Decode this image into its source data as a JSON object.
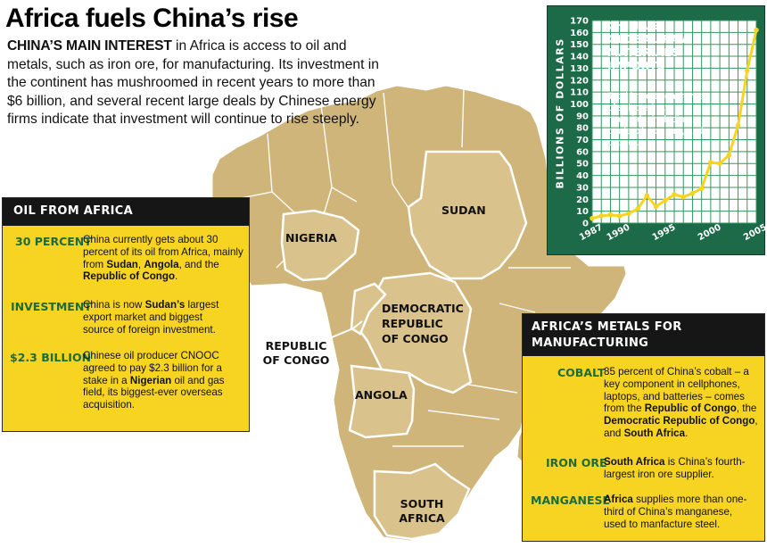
{
  "title": "Africa fuels China’s rise",
  "intro": {
    "lead": "CHINA’S MAIN INTEREST",
    "text": " in Africa is access to oil and metals, such as iron ore, for manufacturing. Its investment in the continent has mushroomed in recent years to more than $6 billion, and several recent large deals by Chinese energy firms indicate that investment will continue to rise steeply."
  },
  "map": {
    "labels": {
      "nigeria": "NIGERIA",
      "sudan": "SUDAN",
      "drc": "DEMOCRATIC REPUBLIC OF CONGO",
      "republic_of_congo": "REPUBLIC OF CONGO",
      "angola": "ANGOLA",
      "south_africa": "SOUTH AFRICA"
    },
    "colors": {
      "land": "#cfb57a",
      "highlight": "#d9c28b",
      "border": "#ffffff",
      "sea": "#ffffff"
    }
  },
  "oil_panel": {
    "header": "OIL FROM AFRICA",
    "rows": [
      {
        "key": "30 PERCENT",
        "parts": [
          "China currently gets about 30 percent of its oil from Africa, mainly from ",
          "Sudan",
          ", ",
          "Angola",
          ", and the ",
          "Republic of Congo",
          "."
        ]
      },
      {
        "key": "INVESTMENT",
        "parts": [
          "China is now ",
          "Sudan’s",
          " largest export market and biggest source of foreign investment."
        ]
      },
      {
        "key": "$2.3 BILLION",
        "parts": [
          "Chinese oil producer CNOOC agreed to pay $2.3 billion for a stake in a ",
          "Nigerian",
          " oil and gas field, its biggest-ever overseas acquisition."
        ]
      }
    ],
    "colors": {
      "bg": "#f7d422",
      "key": "#1e6b3a"
    }
  },
  "metals_panel": {
    "header": "AFRICA’S METALS FOR MANUFACTURING",
    "rows": [
      {
        "key": "COBALT",
        "parts": [
          "85 percent of China’s cobalt – a key component in cellphones, laptops, and batteries – comes from the ",
          "Republic of Congo",
          ", the ",
          "Democratic Republic of Congo",
          ", and ",
          "South Africa",
          "."
        ]
      },
      {
        "key": "IRON ORE",
        "parts": [
          "",
          "South Africa",
          " is China’s fourth-largest iron ore supplier."
        ]
      },
      {
        "key": "MANGANESE",
        "parts": [
          "",
          "Africa",
          " supplies more than one-third of China’s manganese, used to manfacture steel."
        ]
      }
    ]
  },
  "chart_data": {
    "type": "line",
    "title": "CHINA’S GLOBAL RAW MATERIALS IMPORTS",
    "subtitle": "Total imports each year of selected raw materials, including crude oil, iron ore, and copper.",
    "ylabel": "BILLIONS OF DOLLARS",
    "xlabel": "",
    "x": [
      1987,
      1988,
      1989,
      1990,
      1991,
      1992,
      1993,
      1994,
      1995,
      1996,
      1997,
      1998,
      1999,
      2000,
      2001,
      2002,
      2003,
      2004,
      2005
    ],
    "values": [
      4,
      6,
      7,
      6,
      8,
      12,
      23,
      14,
      19,
      24,
      22,
      25,
      29,
      51,
      50,
      57,
      82,
      128,
      162
    ],
    "xlim": [
      1987,
      2005
    ],
    "ylim": [
      0,
      170
    ],
    "xticks": [
      "1987",
      "1990",
      "1995",
      "2000",
      "2005"
    ],
    "yticks": [
      "0",
      "10",
      "20",
      "30",
      "40",
      "50",
      "60",
      "70",
      "80",
      "90",
      "100",
      "110",
      "120",
      "130",
      "140",
      "150",
      "160",
      "170"
    ],
    "grid": true,
    "colors": {
      "panel": "#1c6a47",
      "plot_bg": "#ffffff",
      "grid": "#2f9a5c",
      "line": "#f7d422"
    }
  }
}
